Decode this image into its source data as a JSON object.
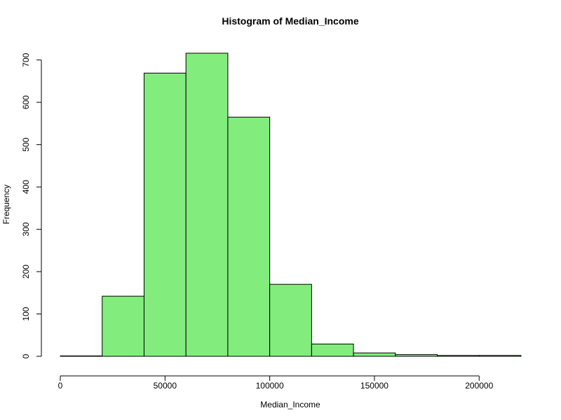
{
  "chart_data": {
    "type": "histogram",
    "title": "Histogram of Median_Income",
    "xlabel": "Median_Income",
    "ylabel": "Frequency",
    "bin_edges": [
      0,
      20000,
      40000,
      60000,
      80000,
      100000,
      120000,
      140000,
      160000,
      180000,
      200000,
      220000
    ],
    "counts": [
      1,
      142,
      669,
      716,
      565,
      170,
      29,
      8,
      4,
      2,
      2
    ],
    "xlim": [
      0,
      220000
    ],
    "ylim": [
      0,
      716
    ],
    "x_ticks": [
      0,
      50000,
      100000,
      150000,
      200000
    ],
    "x_tick_labels": [
      "0",
      "50000",
      "100000",
      "150000",
      "200000"
    ],
    "y_ticks": [
      0,
      100,
      200,
      300,
      400,
      500,
      600,
      700
    ],
    "y_tick_labels": [
      "0",
      "100",
      "200",
      "300",
      "400",
      "500",
      "600",
      "700"
    ],
    "bar_color": "#82ED7D",
    "border_color": "#000000",
    "grid": false,
    "legend": "none"
  }
}
